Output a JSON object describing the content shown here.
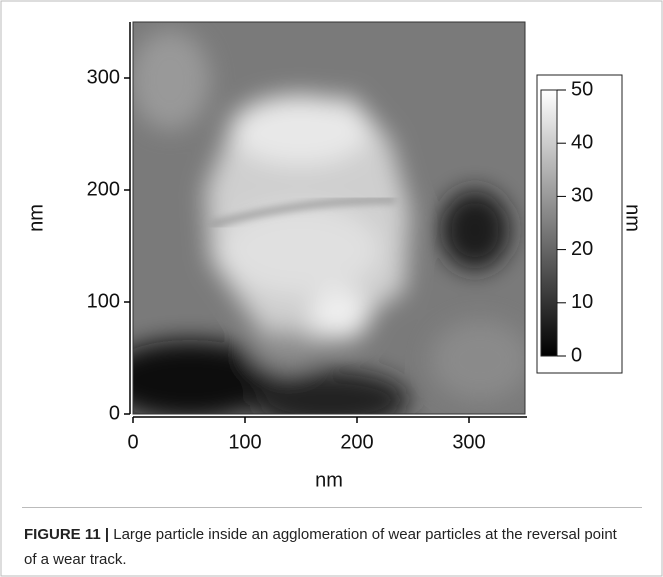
{
  "chart_data": {
    "type": "image",
    "xlabel": "nm",
    "ylabel": "nm",
    "xlim": [
      0,
      350
    ],
    "ylim": [
      0,
      350
    ],
    "xticks": [
      0,
      100,
      200,
      300
    ],
    "yticks": [
      0,
      100,
      200,
      300
    ],
    "colorbar": {
      "label": "nm",
      "lim": [
        0,
        50
      ],
      "ticks": [
        0,
        10,
        20,
        30,
        40,
        50
      ],
      "colormap": [
        "#000000",
        "#ffffff"
      ]
    }
  },
  "caption": {
    "label": "FIGURE 11 |",
    "text": "Large particle inside an agglomeration of wear particles at the reversal point of a wear track."
  }
}
